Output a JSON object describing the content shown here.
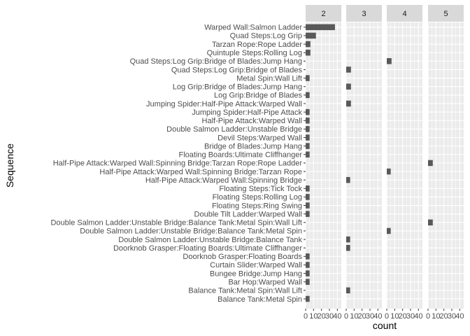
{
  "chart_data": {
    "type": "bar",
    "orientation": "horizontal",
    "faceted": true,
    "xlabel": "count",
    "ylabel": "Sequence",
    "xlim": [
      0,
      45
    ],
    "x_ticks": [
      0,
      10,
      20,
      30,
      40
    ],
    "x_tick_labels": [
      "0",
      "10",
      "20",
      "30",
      "40"
    ],
    "grid": true,
    "panel_background": "#EBEBEB",
    "grid_color": "#FFFFFF",
    "strip_background": "#D9D9D9",
    "bar_color": "#595959",
    "panels": [
      "2",
      "3",
      "4",
      "5"
    ],
    "categories": [
      "Warped Wall:Salmon Ladder",
      "Quad Steps:Log Grip",
      "Tarzan Rope:Rope Ladder",
      "Quintuple Steps:Rolling Log",
      "Quad Steps:Log Grip:Bridge of Blades:Jump Hang",
      "Quad Steps:Log Grip:Bridge of Blades",
      "Metal Spin:Wall Lift",
      "Log Grip:Bridge of Blades:Jump Hang",
      "Log Grip:Bridge of Blades",
      "Jumping Spider:Half-Pipe Attack:Warped Wall",
      "Jumping Spider:Half-Pipe Attack",
      "Half-Pipe Attack:Warped Wall",
      "Double Salmon Ladder:Unstable Bridge",
      "Devil Steps:Warped Wall",
      "Bridge of Blades:Jump Hang",
      "Floating Boards:Ultimate Cliffhanger",
      "Half-Pipe Attack:Warped Wall:Spinning Bridge:Tarzan Rope:Rope Ladder",
      "Half-Pipe Attack:Warped Wall:Spinning Bridge:Tarzan Rope",
      "Half-Pipe Attack:Warped Wall:Spinning Bridge",
      "Floating Steps:Tick Tock",
      "Floating Steps:Rolling Log",
      "Floating Steps:Ring Swing",
      "Double Tilt Ladder:Warped Wall",
      "Double Salmon Ladder:Unstable Bridge:Balance Tank:Metal Spin:Wall Lift",
      "Double Salmon Ladder:Unstable Bridge:Balance Tank:Metal Spin",
      "Double Salmon Ladder:Unstable Bridge:Balance Tank",
      "Doorknob Grasper:Floating Boards:Ultimate Cliffhanger",
      "Doorknob Grasper:Floating Boards",
      "Curtain Slider:Warped Wall",
      "Bungee Bridge:Jump Hang",
      "Bar Hop:Warped Wall",
      "Balance Tank:Metal Spin:Wall Lift",
      "Balance Tank:Metal Spin"
    ],
    "series": [
      {
        "panel": "2",
        "values": [
          37,
          13,
          6,
          6,
          0,
          0,
          5,
          0,
          5,
          0,
          5,
          5,
          5,
          5,
          5,
          5,
          0,
          0,
          0,
          5,
          5,
          5,
          5,
          0,
          0,
          0,
          0,
          5,
          5,
          5,
          5,
          0,
          5
        ]
      },
      {
        "panel": "3",
        "values": [
          0,
          0,
          0,
          0,
          0,
          6,
          0,
          6,
          0,
          6,
          0,
          0,
          0,
          0,
          0,
          0,
          0,
          0,
          5,
          0,
          0,
          0,
          0,
          0,
          0,
          5,
          5,
          0,
          0,
          0,
          0,
          5,
          0
        ]
      },
      {
        "panel": "4",
        "values": [
          0,
          0,
          0,
          0,
          6,
          0,
          0,
          0,
          0,
          0,
          0,
          0,
          0,
          0,
          0,
          0,
          0,
          5,
          0,
          0,
          0,
          0,
          0,
          0,
          5,
          0,
          0,
          0,
          0,
          0,
          0,
          0,
          0
        ]
      },
      {
        "panel": "5",
        "values": [
          0,
          0,
          0,
          0,
          0,
          0,
          0,
          0,
          0,
          0,
          0,
          0,
          0,
          0,
          0,
          0,
          6,
          0,
          0,
          0,
          0,
          0,
          0,
          6,
          0,
          0,
          0,
          0,
          0,
          0,
          0,
          0,
          0
        ]
      }
    ]
  }
}
